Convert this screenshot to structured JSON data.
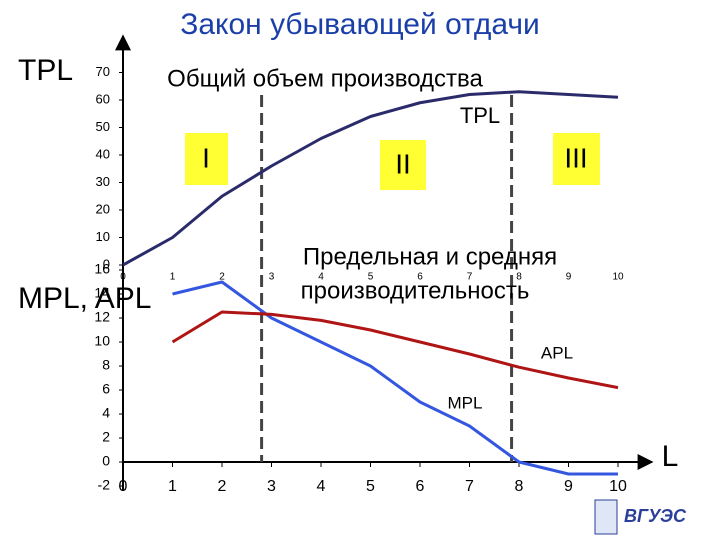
{
  "chart_data": [
    {
      "type": "line",
      "title": "Закон убывающей отдачи",
      "ylabel": "TPL",
      "x": [
        0,
        1,
        2,
        3,
        4,
        5,
        6,
        7,
        8,
        9,
        10
      ],
      "xlim": [
        0,
        10
      ],
      "xticks": [
        0,
        1,
        2,
        3,
        4,
        5,
        6,
        7,
        8,
        9,
        10
      ],
      "ylim": [
        0,
        70
      ],
      "yticks": [
        0,
        10,
        20,
        30,
        40,
        50,
        60,
        70
      ],
      "series": [
        {
          "name": "TPL",
          "color": "#2b2b6b",
          "values": [
            0,
            10,
            25,
            36,
            46,
            54,
            59,
            62,
            63,
            62,
            61
          ]
        }
      ],
      "dividers": [
        2.8,
        7.85
      ],
      "annotations": [
        "Общий объем производства",
        "I",
        "II",
        "III"
      ]
    },
    {
      "type": "line",
      "ylabel": "MPL, APL",
      "xlabel": "L",
      "x": [
        1,
        2,
        3,
        4,
        5,
        6,
        7,
        8,
        9,
        10
      ],
      "xlim": [
        0,
        10
      ],
      "xticks": [
        0,
        1,
        2,
        3,
        4,
        5,
        6,
        7,
        8,
        9,
        10
      ],
      "ylim": [
        -2,
        16
      ],
      "yticks": [
        -2,
        0,
        2,
        4,
        6,
        8,
        10,
        12,
        14,
        16
      ],
      "series": [
        {
          "name": "MPL",
          "color": "#3557e0",
          "values": [
            14,
            15,
            12,
            10,
            8,
            5,
            3,
            0,
            -1,
            -1
          ]
        },
        {
          "name": "APL",
          "color": "#b01515",
          "values": [
            10,
            12.5,
            12.3,
            11.8,
            11,
            10,
            9,
            7.9,
            7,
            6.2
          ]
        }
      ],
      "annotations": [
        "Предельная и средняя",
        "производительность"
      ]
    }
  ]
}
